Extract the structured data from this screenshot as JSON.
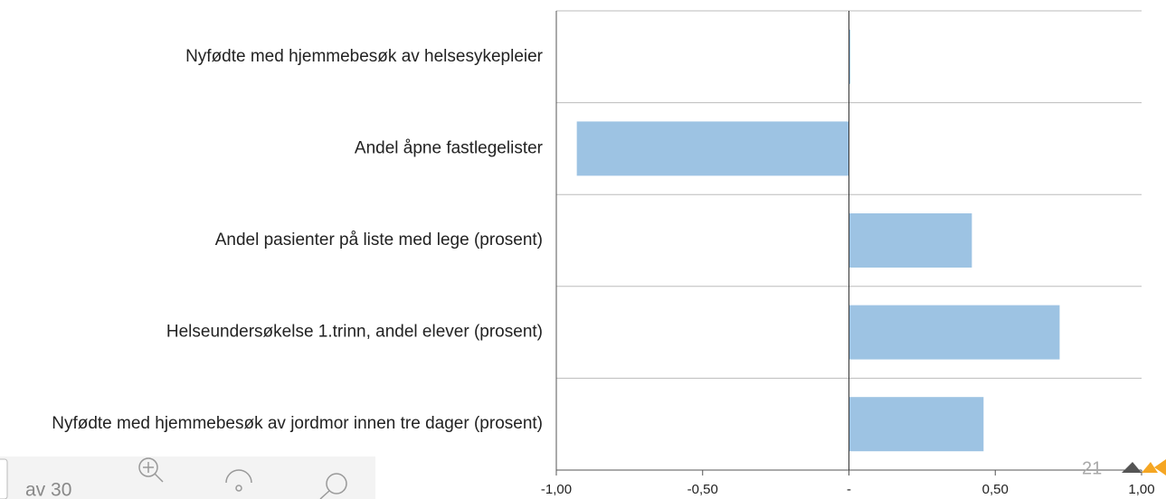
{
  "chart_data": {
    "type": "barh",
    "categories": [
      "Nyfødte med hjemmebesøk av helsesykepleier",
      "Andel åpne fastlegelister",
      "Andel pasienter på liste med lege (prosent)",
      "Helseundersøkelse 1.trinn, andel elever (prosent)",
      "Nyfødte med hjemmebesøk av jordmor innen tre dager (prosent)"
    ],
    "values": [
      0.005,
      -0.93,
      0.42,
      0.72,
      0.46
    ],
    "color": "#9dc3e3",
    "xlim": [
      -1,
      1
    ],
    "xticks": [
      {
        "value": -1,
        "label": "-1,00"
      },
      {
        "value": -0.5,
        "label": "-0,50"
      },
      {
        "value": 0,
        "label": "-"
      },
      {
        "value": 0.5,
        "label": "0,50"
      },
      {
        "value": 1,
        "label": "1,00"
      }
    ],
    "grid": true
  },
  "viewer": {
    "page_of": "av 30",
    "page_number": "21"
  }
}
